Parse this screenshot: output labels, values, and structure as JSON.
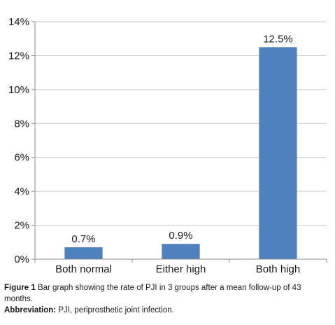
{
  "chart_data": {
    "type": "bar",
    "categories": [
      "Both normal",
      "Either high",
      "Both high"
    ],
    "values": [
      0.7,
      0.9,
      12.5
    ],
    "data_labels": [
      "0.7%",
      "0.9%",
      "12.5%"
    ],
    "ylim": [
      0,
      14
    ],
    "y_ticks": [
      0,
      2,
      4,
      6,
      8,
      10,
      12,
      14
    ],
    "y_tick_labels": [
      "0%",
      "2%",
      "4%",
      "6%",
      "8%",
      "10%",
      "12%",
      "14%"
    ],
    "grid": true,
    "legend": "none",
    "bar_color": "#4f81bd",
    "grid_color": "#c6c6c6",
    "axis_color": "#8c8c8c"
  },
  "caption": {
    "figure_label": "Figure 1",
    "figure_text": "Bar graph showing the rate of PJI in 3 groups after a mean follow-up of 43 months.",
    "abbreviation_label": "Abbreviation:",
    "abbreviation_text": "PJI, periprosthetic joint infection."
  }
}
